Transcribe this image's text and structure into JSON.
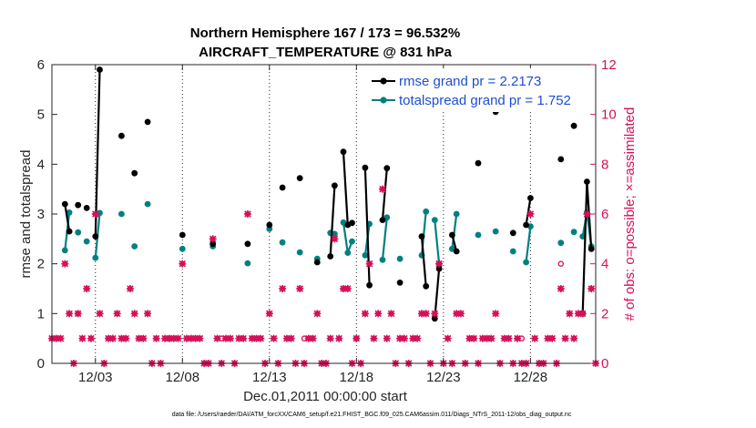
{
  "chart_data": {
    "type": "line",
    "title": [
      "Northern Hemisphere 167 / 173 = 96.532%",
      "AIRCRAFT_TEMPERATURE @ 831 hPa"
    ],
    "xlabel": "Dec.01,2011 00:00:00 start",
    "ylabel_left": "rmse and totalspread",
    "ylabel_right": "# of obs: o=possible; ×=assimilated",
    "xlim": [
      0.5,
      31.75
    ],
    "ylim_left": [
      0,
      6
    ],
    "ylim_right": [
      0,
      12
    ],
    "xticks": [
      3,
      8,
      13,
      18,
      23,
      28
    ],
    "xtick_labels": [
      "12/03",
      "12/08",
      "12/13",
      "12/18",
      "12/23",
      "12/28"
    ],
    "yticks_left": [
      0,
      1,
      2,
      3,
      4,
      5,
      6
    ],
    "yticks_right": [
      0,
      2,
      4,
      6,
      8,
      10,
      12
    ],
    "legend": [
      "rmse grand pr = 2.2173",
      "totalspread grand pr = 1.752"
    ],
    "footnote": "data file: /Users/raeder/DAI/ATM_forcXX/CAM6_setup/f.e21.FHIST_BGC.f09_025.CAM6assim.011/Diags_NTrS_2011-12/obs_diag_output.nc",
    "colors": {
      "rmse": "#000000",
      "spread": "#008080",
      "obs": "#d6105a",
      "legend_text": "#1f4fd1"
    },
    "rmse_segments": [
      [
        [
          1.25,
          3.2
        ],
        [
          1.5,
          2.65
        ]
      ],
      [
        [
          2.0,
          3.18
        ]
      ],
      [
        [
          2.5,
          3.12
        ]
      ],
      [
        [
          3.0,
          2.55
        ],
        [
          3.25,
          5.9
        ]
      ],
      [
        [
          4.5,
          4.57
        ]
      ],
      [
        [
          5.25,
          3.82
        ]
      ],
      [
        [
          6.0,
          4.85
        ]
      ],
      [
        [
          8.0,
          2.58
        ]
      ],
      [
        [
          9.75,
          2.4
        ]
      ],
      [
        [
          11.75,
          2.4
        ]
      ],
      [
        [
          13.0,
          2.78
        ]
      ],
      [
        [
          13.75,
          3.53
        ]
      ],
      [
        [
          14.75,
          3.72
        ]
      ],
      [
        [
          15.75,
          2.03
        ]
      ],
      [
        [
          16.5,
          2.15
        ],
        [
          16.75,
          3.57
        ]
      ],
      [
        [
          17.25,
          4.25
        ],
        [
          17.5,
          2.78
        ],
        [
          17.75,
          2.82
        ]
      ],
      [
        [
          18.5,
          3.93
        ],
        [
          18.75,
          1.57
        ]
      ],
      [
        [
          19.5,
          2.88
        ],
        [
          19.75,
          3.92
        ]
      ],
      [
        [
          20.5,
          1.62
        ]
      ],
      [
        [
          21.75,
          2.55
        ],
        [
          22.0,
          1.55
        ]
      ],
      [
        [
          22.5,
          0.9
        ],
        [
          22.75,
          1.9
        ]
      ],
      [
        [
          23.5,
          2.58
        ],
        [
          23.75,
          2.25
        ]
      ],
      [
        [
          25.0,
          4.02
        ]
      ],
      [
        [
          26.0,
          5.05
        ]
      ],
      [
        [
          27.0,
          2.62
        ]
      ],
      [
        [
          27.75,
          2.78
        ],
        [
          28.0,
          3.32
        ]
      ],
      [
        [
          29.75,
          4.1
        ]
      ],
      [
        [
          30.5,
          4.77
        ]
      ],
      [
        [
          31.0,
          1.0
        ],
        [
          31.25,
          3.65
        ],
        [
          31.5,
          2.3
        ]
      ]
    ],
    "spread_segments": [
      [
        [
          1.25,
          2.27
        ],
        [
          1.5,
          3.03
        ]
      ],
      [
        [
          2.0,
          2.63
        ]
      ],
      [
        [
          2.5,
          2.45
        ]
      ],
      [
        [
          3.0,
          2.12
        ],
        [
          3.25,
          3.02
        ]
      ],
      [
        [
          4.5,
          3.0
        ]
      ],
      [
        [
          5.25,
          2.35
        ]
      ],
      [
        [
          6.0,
          3.2
        ]
      ],
      [
        [
          8.0,
          2.3
        ]
      ],
      [
        [
          9.75,
          2.35
        ]
      ],
      [
        [
          11.75,
          2.01
        ]
      ],
      [
        [
          13.0,
          2.7
        ]
      ],
      [
        [
          13.75,
          2.43
        ]
      ],
      [
        [
          14.75,
          2.23
        ]
      ],
      [
        [
          15.75,
          2.1
        ]
      ],
      [
        [
          16.5,
          2.62
        ],
        [
          16.75,
          2.6
        ]
      ],
      [
        [
          17.25,
          2.83
        ],
        [
          17.5,
          2.22
        ],
        [
          17.75,
          2.45
        ]
      ],
      [
        [
          18.5,
          2.17
        ],
        [
          18.75,
          2.8
        ]
      ],
      [
        [
          19.5,
          2.08
        ],
        [
          19.75,
          2.93
        ]
      ],
      [
        [
          20.5,
          2.1
        ]
      ],
      [
        [
          21.75,
          2.17
        ],
        [
          22.0,
          3.05
        ]
      ],
      [
        [
          22.5,
          2.88
        ],
        [
          22.75,
          2.0
        ]
      ],
      [
        [
          23.5,
          2.3
        ],
        [
          23.75,
          3.0
        ]
      ],
      [
        [
          25.0,
          2.58
        ]
      ],
      [
        [
          26.0,
          2.65
        ]
      ],
      [
        [
          27.0,
          2.25
        ]
      ],
      [
        [
          27.75,
          2.03
        ],
        [
          28.0,
          2.75
        ]
      ],
      [
        [
          29.75,
          2.42
        ]
      ],
      [
        [
          30.5,
          2.64
        ]
      ],
      [
        [
          31.0,
          2.55
        ],
        [
          31.25,
          3.02
        ],
        [
          31.5,
          2.35
        ]
      ]
    ],
    "obs_assimilated": [
      [
        0.5,
        1
      ],
      [
        0.75,
        1
      ],
      [
        1.0,
        1
      ],
      [
        1.25,
        4
      ],
      [
        1.5,
        2
      ],
      [
        1.75,
        0
      ],
      [
        2.0,
        2
      ],
      [
        2.25,
        1
      ],
      [
        2.5,
        3
      ],
      [
        2.75,
        1
      ],
      [
        3.0,
        6
      ],
      [
        3.25,
        2
      ],
      [
        3.5,
        0
      ],
      [
        3.75,
        1
      ],
      [
        4.0,
        1
      ],
      [
        4.25,
        2
      ],
      [
        4.5,
        1
      ],
      [
        4.75,
        1
      ],
      [
        5.0,
        3
      ],
      [
        5.25,
        2
      ],
      [
        5.5,
        1
      ],
      [
        5.75,
        1
      ],
      [
        6.0,
        2
      ],
      [
        6.25,
        0
      ],
      [
        6.5,
        1
      ],
      [
        6.75,
        0
      ],
      [
        7.0,
        1
      ],
      [
        7.25,
        1
      ],
      [
        7.5,
        1
      ],
      [
        7.75,
        1
      ],
      [
        8.0,
        4
      ],
      [
        8.25,
        1
      ],
      [
        8.5,
        1
      ],
      [
        8.75,
        1
      ],
      [
        9.0,
        1
      ],
      [
        9.25,
        0
      ],
      [
        9.5,
        0
      ],
      [
        9.75,
        5
      ],
      [
        10.0,
        1
      ],
      [
        10.25,
        0
      ],
      [
        10.5,
        1
      ],
      [
        10.75,
        1
      ],
      [
        11.0,
        0
      ],
      [
        11.25,
        1
      ],
      [
        11.5,
        1
      ],
      [
        11.75,
        6
      ],
      [
        12.0,
        1
      ],
      [
        12.25,
        1
      ],
      [
        12.5,
        1
      ],
      [
        12.75,
        0
      ],
      [
        13.0,
        2
      ],
      [
        13.25,
        1
      ],
      [
        13.5,
        0
      ],
      [
        13.75,
        3
      ],
      [
        14.0,
        1
      ],
      [
        14.25,
        1
      ],
      [
        14.5,
        0
      ],
      [
        14.75,
        3
      ],
      [
        15.0,
        0
      ],
      [
        15.25,
        1
      ],
      [
        15.5,
        1
      ],
      [
        15.75,
        2
      ],
      [
        16.0,
        0
      ],
      [
        16.25,
        0
      ],
      [
        16.5,
        1
      ],
      [
        16.75,
        5
      ],
      [
        17.0,
        1
      ],
      [
        17.25,
        3
      ],
      [
        17.5,
        3
      ],
      [
        17.75,
        0
      ],
      [
        18.0,
        1
      ],
      [
        18.25,
        0
      ],
      [
        18.5,
        2
      ],
      [
        18.75,
        4
      ],
      [
        19.0,
        1
      ],
      [
        19.25,
        2
      ],
      [
        19.5,
        7
      ],
      [
        19.75,
        1
      ],
      [
        20.0,
        2
      ],
      [
        20.25,
        0
      ],
      [
        20.5,
        1
      ],
      [
        20.75,
        1
      ],
      [
        21.0,
        0
      ],
      [
        21.25,
        1
      ],
      [
        21.5,
        1
      ],
      [
        21.75,
        2
      ],
      [
        22.0,
        2
      ],
      [
        22.25,
        0
      ],
      [
        22.5,
        2
      ],
      [
        22.75,
        4
      ],
      [
        23.0,
        0
      ],
      [
        23.25,
        1
      ],
      [
        23.5,
        0
      ],
      [
        23.75,
        2
      ],
      [
        24.0,
        2
      ],
      [
        24.25,
        0
      ],
      [
        24.5,
        1
      ],
      [
        24.75,
        1
      ],
      [
        25.0,
        0
      ],
      [
        25.25,
        1
      ],
      [
        25.5,
        1
      ],
      [
        25.75,
        1
      ],
      [
        26.0,
        2
      ],
      [
        26.25,
        0
      ],
      [
        26.5,
        1
      ],
      [
        26.75,
        1
      ],
      [
        27.0,
        0
      ],
      [
        27.25,
        1
      ],
      [
        27.5,
        0
      ],
      [
        27.75,
        0
      ],
      [
        28.0,
        6
      ],
      [
        28.25,
        1
      ],
      [
        28.5,
        0
      ],
      [
        28.75,
        0
      ],
      [
        29.0,
        1
      ],
      [
        29.25,
        1
      ],
      [
        29.5,
        0
      ],
      [
        29.75,
        3
      ],
      [
        30.0,
        1
      ],
      [
        30.25,
        2
      ],
      [
        30.5,
        1
      ],
      [
        30.75,
        2
      ],
      [
        31.0,
        2
      ],
      [
        31.25,
        6
      ],
      [
        31.5,
        3
      ],
      [
        31.75,
        0
      ]
    ],
    "obs_possible": [
      [
        2.0,
        2
      ],
      [
        7.25,
        1
      ],
      [
        10.25,
        1
      ],
      [
        15.0,
        1
      ],
      [
        18.0,
        1
      ],
      [
        27.5,
        1
      ],
      [
        29.75,
        4
      ]
    ]
  }
}
